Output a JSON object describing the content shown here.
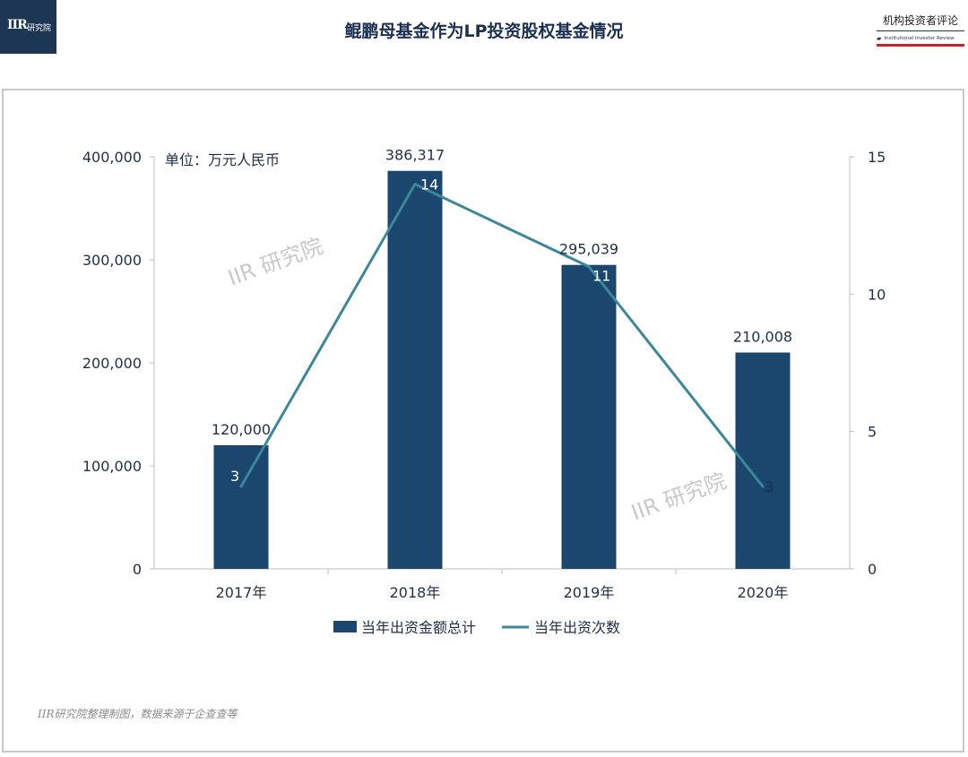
{
  "header": {
    "logo_text_main": "IIR",
    "logo_text_sub": "研究院",
    "title": "鲲鹏母基金作为LP投资股权基金情况",
    "brand_cn": "机构投资者评论",
    "brand_en": "Institutional Investor Review",
    "accent_color": "#c8232c",
    "brand_color": "#1d3654"
  },
  "watermarks": [
    "IIR 研究院",
    "IIR 研究院"
  ],
  "source_note": "IIR研究院整理制图，数据来源于企查查等",
  "chart_data": {
    "type": "bar",
    "unit_note": "单位：万元人民币",
    "categories": [
      "2017年",
      "2018年",
      "2019年",
      "2020年"
    ],
    "series": [
      {
        "name": "当年出资金额总计",
        "type": "bar",
        "axis": "left",
        "values": [
          120000,
          386317,
          295039,
          210008
        ],
        "labels": [
          "120,000",
          "386,317",
          "295,039",
          "210,008"
        ],
        "color": "#1b466d"
      },
      {
        "name": "当年出资次数",
        "type": "line",
        "axis": "right",
        "values": [
          3,
          14,
          11,
          3
        ],
        "labels": [
          "3",
          "14",
          "11",
          "3"
        ],
        "color": "#3c8799"
      }
    ],
    "y_left": {
      "ylim": [
        0,
        400000
      ],
      "ticks": [
        0,
        100000,
        200000,
        300000,
        400000
      ],
      "tick_labels": [
        "0",
        "100,000",
        "200,000",
        "300,000",
        "400,000"
      ]
    },
    "y_right": {
      "ylim": [
        0,
        15
      ],
      "ticks": [
        0,
        5,
        10,
        15
      ],
      "tick_labels": [
        "0",
        "5",
        "10",
        "15"
      ]
    },
    "grid": false,
    "legend": "bottom"
  }
}
